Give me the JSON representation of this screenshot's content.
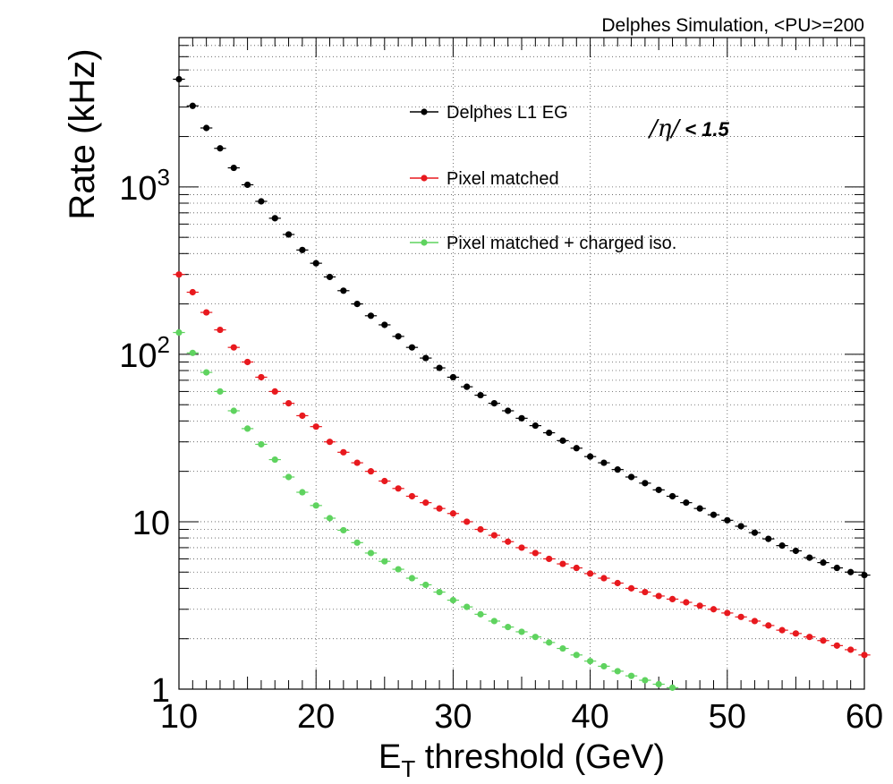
{
  "chart_data": {
    "type": "scatter",
    "title": "",
    "header_text": "Delphes Simulation, <PU>=200",
    "annotation": {
      "prefix": "/η/",
      "suffix": " < 1.5"
    },
    "xlabel": {
      "main": "E",
      "sub": "T",
      "rest": " threshold (GeV)"
    },
    "ylabel": "Rate (kHz)",
    "xlim": [
      10,
      60
    ],
    "ylim": [
      1,
      7800
    ],
    "yscale": "log",
    "grid": true,
    "legend_position": "top-center",
    "x_ticks": [
      {
        "value": 10,
        "label": "10"
      },
      {
        "value": 20,
        "label": "20"
      },
      {
        "value": 30,
        "label": "30"
      },
      {
        "value": 40,
        "label": "40"
      },
      {
        "value": 50,
        "label": "50"
      },
      {
        "value": 60,
        "label": "60"
      }
    ],
    "y_ticks": [
      {
        "value": 1,
        "label": "1",
        "kind": "plain"
      },
      {
        "value": 10,
        "label": "10",
        "kind": "plain"
      },
      {
        "value": 100,
        "label": "10",
        "exp": "2",
        "kind": "pow"
      },
      {
        "value": 1000,
        "label": "10",
        "exp": "3",
        "kind": "pow"
      }
    ],
    "x": [
      10,
      11,
      12,
      13,
      14,
      15,
      16,
      17,
      18,
      19,
      20,
      21,
      22,
      23,
      24,
      25,
      26,
      27,
      28,
      29,
      30,
      31,
      32,
      33,
      34,
      35,
      36,
      37,
      38,
      39,
      40,
      41,
      42,
      43,
      44,
      45,
      46,
      47,
      48,
      49,
      50,
      51,
      52,
      53,
      54,
      55,
      56,
      57,
      58,
      59,
      60
    ],
    "series": [
      {
        "name": "Delphes L1 EG",
        "color": "#000000",
        "values": [
          4400,
          3050,
          2250,
          1700,
          1300,
          1030,
          820,
          650,
          520,
          420,
          350,
          290,
          240,
          200,
          170,
          150,
          128,
          110,
          95,
          83,
          73,
          64,
          57,
          51,
          46,
          41.5,
          37.5,
          34,
          30.5,
          27.5,
          24.5,
          22.5,
          20.5,
          18.5,
          17,
          15.5,
          14.2,
          13,
          12,
          11,
          10.2,
          9.4,
          8.6,
          7.9,
          7.2,
          6.7,
          6.1,
          5.7,
          5.3,
          5.0,
          4.8
        ]
      },
      {
        "name": "Pixel matched",
        "color": "#e8191e",
        "values": [
          300,
          235,
          178,
          140,
          110,
          90,
          73,
          60,
          51,
          43,
          37,
          30,
          26,
          22.5,
          20,
          17.5,
          15.8,
          14.2,
          13,
          12,
          11.2,
          10,
          9.0,
          8.3,
          7.6,
          7.0,
          6.5,
          6.0,
          5.6,
          5.3,
          4.9,
          4.6,
          4.3,
          4.0,
          3.8,
          3.6,
          3.45,
          3.3,
          3.15,
          3.0,
          2.85,
          2.7,
          2.55,
          2.4,
          2.25,
          2.15,
          2.05,
          1.95,
          1.82,
          1.72,
          1.6
        ]
      },
      {
        "name": "Pixel matched + charged iso.",
        "color": "#5fd35f",
        "values": [
          135,
          102,
          78,
          60,
          46,
          36,
          29,
          23.5,
          18.5,
          15,
          12.5,
          10.5,
          8.9,
          7.5,
          6.5,
          5.8,
          5.2,
          4.6,
          4.2,
          3.8,
          3.4,
          3.1,
          2.8,
          2.55,
          2.35,
          2.2,
          2.05,
          1.9,
          1.75,
          1.6,
          1.47,
          1.37,
          1.28,
          1.2,
          1.13,
          1.07,
          1.02
        ]
      }
    ]
  }
}
